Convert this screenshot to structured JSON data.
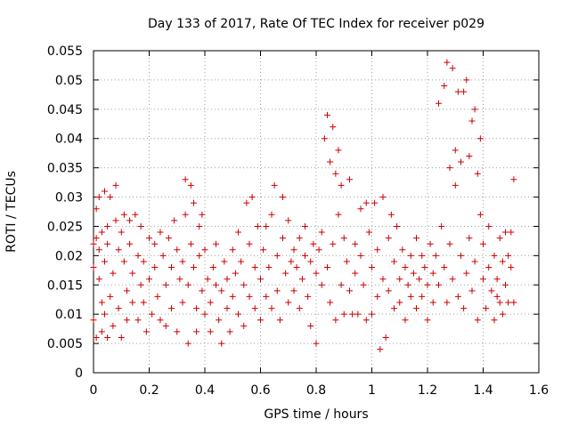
{
  "chart_data": {
    "type": "scatter",
    "title": "Day 133 of 2017, Rate Of TEC Index for receiver p029",
    "xlabel": "GPS time / hours",
    "ylabel": "ROTI / TECUs",
    "xlim": [
      0,
      1.6
    ],
    "ylim": [
      0,
      0.055
    ],
    "xticks": [
      0,
      0.2,
      0.4,
      0.6,
      0.8,
      1,
      1.2,
      1.4,
      1.6
    ],
    "xtick_labels": [
      "0",
      "0.2",
      "0.4",
      "0.6",
      "0.8",
      "1",
      "1.2",
      "1.4",
      "1.6"
    ],
    "yticks": [
      0,
      0.005,
      0.01,
      0.015,
      0.02,
      0.025,
      0.03,
      0.035,
      0.04,
      0.045,
      0.05,
      0.055
    ],
    "ytick_labels": [
      "0",
      "0.005",
      "0.01",
      "0.015",
      "0.02",
      "0.025",
      "0.03",
      "0.035",
      "0.04",
      "0.045",
      "0.05",
      "0.055"
    ],
    "grid": true,
    "marker": "plus",
    "color": "#cc0000",
    "series": [
      {
        "points": [
          [
            0.0,
            0.022
          ],
          [
            0.0,
            0.018
          ],
          [
            0.0,
            0.009
          ],
          [
            0.01,
            0.006
          ],
          [
            0.01,
            0.028
          ],
          [
            0.01,
            0.023
          ],
          [
            0.02,
            0.03
          ],
          [
            0.02,
            0.021
          ],
          [
            0.02,
            0.016
          ],
          [
            0.03,
            0.012
          ],
          [
            0.03,
            0.007
          ],
          [
            0.03,
            0.024
          ],
          [
            0.04,
            0.031
          ],
          [
            0.04,
            0.019
          ],
          [
            0.04,
            0.01
          ],
          [
            0.05,
            0.025
          ],
          [
            0.05,
            0.006
          ],
          [
            0.05,
            0.022
          ],
          [
            0.06,
            0.03
          ],
          [
            0.06,
            0.013
          ],
          [
            0.07,
            0.017
          ],
          [
            0.07,
            0.008
          ],
          [
            0.08,
            0.032
          ],
          [
            0.08,
            0.026
          ],
          [
            0.09,
            0.021
          ],
          [
            0.09,
            0.011
          ],
          [
            0.1,
            0.006
          ],
          [
            0.1,
            0.024
          ],
          [
            0.11,
            0.019
          ],
          [
            0.11,
            0.027
          ],
          [
            0.12,
            0.014
          ],
          [
            0.12,
            0.009
          ],
          [
            0.13,
            0.026
          ],
          [
            0.13,
            0.022
          ],
          [
            0.14,
            0.017
          ],
          [
            0.14,
            0.012
          ],
          [
            0.15,
            0.027
          ],
          [
            0.16,
            0.02
          ],
          [
            0.16,
            0.009
          ],
          [
            0.17,
            0.015
          ],
          [
            0.17,
            0.025
          ],
          [
            0.18,
            0.019
          ],
          [
            0.18,
            0.012
          ],
          [
            0.19,
            0.007
          ],
          [
            0.2,
            0.023
          ],
          [
            0.2,
            0.016
          ],
          [
            0.21,
            0.01
          ],
          [
            0.22,
            0.022
          ],
          [
            0.22,
            0.018
          ],
          [
            0.23,
            0.013
          ],
          [
            0.24,
            0.009
          ],
          [
            0.24,
            0.024
          ],
          [
            0.25,
            0.02
          ],
          [
            0.26,
            0.015
          ],
          [
            0.26,
            0.008
          ],
          [
            0.27,
            0.023
          ],
          [
            0.28,
            0.018
          ],
          [
            0.28,
            0.011
          ],
          [
            0.29,
            0.026
          ],
          [
            0.3,
            0.021
          ],
          [
            0.3,
            0.007
          ],
          [
            0.31,
            0.016
          ],
          [
            0.32,
            0.012
          ],
          [
            0.32,
            0.019
          ],
          [
            0.33,
            0.033
          ],
          [
            0.33,
            0.027
          ],
          [
            0.34,
            0.015
          ],
          [
            0.34,
            0.005
          ],
          [
            0.35,
            0.032
          ],
          [
            0.35,
            0.022
          ],
          [
            0.36,
            0.029
          ],
          [
            0.36,
            0.018
          ],
          [
            0.37,
            0.011
          ],
          [
            0.37,
            0.007
          ],
          [
            0.38,
            0.025
          ],
          [
            0.38,
            0.02
          ],
          [
            0.39,
            0.014
          ],
          [
            0.39,
            0.027
          ],
          [
            0.4,
            0.01
          ],
          [
            0.4,
            0.021
          ],
          [
            0.41,
            0.016
          ],
          [
            0.42,
            0.012
          ],
          [
            0.42,
            0.007
          ],
          [
            0.43,
            0.018
          ],
          [
            0.44,
            0.022
          ],
          [
            0.44,
            0.015
          ],
          [
            0.45,
            0.009
          ],
          [
            0.46,
            0.014
          ],
          [
            0.46,
            0.005
          ],
          [
            0.47,
            0.019
          ],
          [
            0.48,
            0.011
          ],
          [
            0.48,
            0.016
          ],
          [
            0.49,
            0.007
          ],
          [
            0.5,
            0.013
          ],
          [
            0.5,
            0.021
          ],
          [
            0.51,
            0.017
          ],
          [
            0.52,
            0.01
          ],
          [
            0.52,
            0.024
          ],
          [
            0.53,
            0.019
          ],
          [
            0.54,
            0.015
          ],
          [
            0.54,
            0.008
          ],
          [
            0.55,
            0.029
          ],
          [
            0.56,
            0.022
          ],
          [
            0.56,
            0.013
          ],
          [
            0.57,
            0.03
          ],
          [
            0.58,
            0.018
          ],
          [
            0.58,
            0.011
          ],
          [
            0.59,
            0.025
          ],
          [
            0.6,
            0.016
          ],
          [
            0.6,
            0.009
          ],
          [
            0.61,
            0.021
          ],
          [
            0.62,
            0.013
          ],
          [
            0.62,
            0.025
          ],
          [
            0.63,
            0.018
          ],
          [
            0.64,
            0.011
          ],
          [
            0.64,
            0.027
          ],
          [
            0.65,
            0.032
          ],
          [
            0.66,
            0.02
          ],
          [
            0.66,
            0.014
          ],
          [
            0.67,
            0.009
          ],
          [
            0.68,
            0.03
          ],
          [
            0.68,
            0.023
          ],
          [
            0.69,
            0.017
          ],
          [
            0.7,
            0.012
          ],
          [
            0.7,
            0.026
          ],
          [
            0.71,
            0.019
          ],
          [
            0.72,
            0.014
          ],
          [
            0.72,
            0.021
          ],
          [
            0.73,
            0.018
          ],
          [
            0.74,
            0.023
          ],
          [
            0.74,
            0.011
          ],
          [
            0.75,
            0.016
          ],
          [
            0.76,
            0.02
          ],
          [
            0.76,
            0.025
          ],
          [
            0.77,
            0.013
          ],
          [
            0.78,
            0.019
          ],
          [
            0.78,
            0.008
          ],
          [
            0.79,
            0.022
          ],
          [
            0.8,
            0.017
          ],
          [
            0.8,
            0.005
          ],
          [
            0.81,
            0.021
          ],
          [
            0.82,
            0.015
          ],
          [
            0.82,
            0.024
          ],
          [
            0.83,
            0.04
          ],
          [
            0.84,
            0.044
          ],
          [
            0.84,
            0.018
          ],
          [
            0.85,
            0.036
          ],
          [
            0.85,
            0.012
          ],
          [
            0.86,
            0.042
          ],
          [
            0.86,
            0.022
          ],
          [
            0.87,
            0.034
          ],
          [
            0.87,
            0.009
          ],
          [
            0.88,
            0.038
          ],
          [
            0.88,
            0.027
          ],
          [
            0.89,
            0.032
          ],
          [
            0.89,
            0.015
          ],
          [
            0.9,
            0.01
          ],
          [
            0.9,
            0.023
          ],
          [
            0.91,
            0.019
          ],
          [
            0.92,
            0.033
          ],
          [
            0.92,
            0.014
          ],
          [
            0.93,
            0.01
          ],
          [
            0.94,
            0.022
          ],
          [
            0.94,
            0.017
          ],
          [
            0.95,
            0.01
          ],
          [
            0.96,
            0.028
          ],
          [
            0.96,
            0.02
          ],
          [
            0.97,
            0.015
          ],
          [
            0.98,
            0.009
          ],
          [
            0.98,
            0.029
          ],
          [
            0.99,
            0.024
          ],
          [
            1.0,
            0.018
          ],
          [
            1.0,
            0.01
          ],
          [
            1.01,
            0.029
          ],
          [
            1.02,
            0.021
          ],
          [
            1.02,
            0.013
          ],
          [
            1.03,
            0.004
          ],
          [
            1.04,
            0.03
          ],
          [
            1.04,
            0.016
          ],
          [
            1.05,
            0.006
          ],
          [
            1.06,
            0.023
          ],
          [
            1.06,
            0.014
          ],
          [
            1.07,
            0.027
          ],
          [
            1.08,
            0.011
          ],
          [
            1.08,
            0.019
          ],
          [
            1.09,
            0.025
          ],
          [
            1.1,
            0.016
          ],
          [
            1.1,
            0.012
          ],
          [
            1.11,
            0.021
          ],
          [
            1.12,
            0.018
          ],
          [
            1.12,
            0.009
          ],
          [
            1.13,
            0.015
          ],
          [
            1.14,
            0.02
          ],
          [
            1.14,
            0.013
          ],
          [
            1.15,
            0.017
          ],
          [
            1.16,
            0.023
          ],
          [
            1.16,
            0.011
          ],
          [
            1.17,
            0.016
          ],
          [
            1.18,
            0.02
          ],
          [
            1.18,
            0.013
          ],
          [
            1.19,
            0.018
          ],
          [
            1.2,
            0.015
          ],
          [
            1.2,
            0.009
          ],
          [
            1.21,
            0.022
          ],
          [
            1.22,
            0.017
          ],
          [
            1.22,
            0.012
          ],
          [
            1.23,
            0.02
          ],
          [
            1.24,
            0.046
          ],
          [
            1.24,
            0.015
          ],
          [
            1.25,
            0.025
          ],
          [
            1.26,
            0.049
          ],
          [
            1.26,
            0.018
          ],
          [
            1.27,
            0.053
          ],
          [
            1.27,
            0.012
          ],
          [
            1.28,
            0.035
          ],
          [
            1.28,
            0.022
          ],
          [
            1.29,
            0.052
          ],
          [
            1.29,
            0.016
          ],
          [
            1.3,
            0.038
          ],
          [
            1.3,
            0.032
          ],
          [
            1.31,
            0.048
          ],
          [
            1.31,
            0.013
          ],
          [
            1.32,
            0.036
          ],
          [
            1.32,
            0.02
          ],
          [
            1.33,
            0.048
          ],
          [
            1.33,
            0.011
          ],
          [
            1.34,
            0.05
          ],
          [
            1.34,
            0.017
          ],
          [
            1.35,
            0.037
          ],
          [
            1.35,
            0.023
          ],
          [
            1.36,
            0.043
          ],
          [
            1.36,
            0.014
          ],
          [
            1.37,
            0.045
          ],
          [
            1.37,
            0.019
          ],
          [
            1.38,
            0.034
          ],
          [
            1.38,
            0.009
          ],
          [
            1.39,
            0.04
          ],
          [
            1.39,
            0.027
          ],
          [
            1.4,
            0.016
          ],
          [
            1.4,
            0.022
          ],
          [
            1.41,
            0.011
          ],
          [
            1.42,
            0.018
          ],
          [
            1.42,
            0.025
          ],
          [
            1.43,
            0.014
          ],
          [
            1.44,
            0.02
          ],
          [
            1.44,
            0.009
          ],
          [
            1.45,
            0.016
          ],
          [
            1.46,
            0.023
          ],
          [
            1.46,
            0.012
          ],
          [
            1.47,
            0.019
          ],
          [
            1.48,
            0.015
          ],
          [
            1.48,
            0.024
          ],
          [
            1.49,
            0.012
          ],
          [
            1.5,
            0.018
          ],
          [
            1.5,
            0.024
          ],
          [
            1.51,
            0.033
          ],
          [
            1.51,
            0.012
          ],
          [
            1.49,
            0.02
          ],
          [
            1.47,
            0.01
          ],
          [
            1.45,
            0.013
          ]
        ]
      }
    ]
  }
}
